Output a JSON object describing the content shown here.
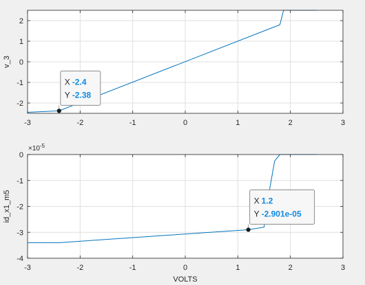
{
  "colors": {
    "figure_bg": "#f0f0f0",
    "axes_bg": "#ffffff",
    "line": "#0072bd",
    "grid": "#dfdfdf",
    "axis": "#262626",
    "tip_value": "#0f8ae0",
    "tip_border": "#8c8c8c",
    "tip_bg": "#f7f7f7"
  },
  "chart_data": [
    {
      "type": "line",
      "ylabel": "v_3",
      "xlabel": "",
      "xlim": [
        -3,
        3
      ],
      "ylim": [
        -2.5,
        2.5
      ],
      "xticks": [
        "-3",
        "-2",
        "-1",
        "0",
        "1",
        "2",
        "3"
      ],
      "yticks": [
        "-2",
        "-1",
        "0",
        "1",
        "2"
      ],
      "grid": true,
      "series": [
        {
          "name": "v_3",
          "x": [
            -3,
            -2.4,
            1.8,
            1.87,
            2.5
          ],
          "y": [
            -2.45,
            -2.38,
            1.8,
            2.5,
            2.5
          ]
        }
      ],
      "datatip": {
        "x": -2.4,
        "y": -2.38,
        "x_label": "X",
        "y_label": "Y",
        "x_text": "-2.4",
        "y_text": "-2.38"
      }
    },
    {
      "type": "line",
      "ylabel": "id_x1_m5",
      "xlabel": "VOLTS",
      "exponent_label": "×10",
      "exponent_power": "-5",
      "xlim": [
        -3,
        3
      ],
      "ylim": [
        -4,
        0
      ],
      "xticks": [
        "-3",
        "-2",
        "-1",
        "0",
        "1",
        "2",
        "3"
      ],
      "yticks": [
        "-4",
        "-3",
        "-2",
        "-1",
        "0"
      ],
      "grid": true,
      "series": [
        {
          "name": "id_x1_m5",
          "x": [
            -3,
            -2.4,
            1.2,
            1.5,
            1.6,
            1.7,
            1.8,
            2.5
          ],
          "y": [
            -3.4,
            -3.4,
            -2.9,
            -2.8,
            -1.4,
            -0.25,
            0,
            0
          ]
        }
      ],
      "datatip": {
        "x": 1.2,
        "y": -2.901,
        "x_label": "X",
        "y_label": "Y",
        "x_text": "1.2",
        "y_text": "-2.901e-05"
      }
    }
  ]
}
